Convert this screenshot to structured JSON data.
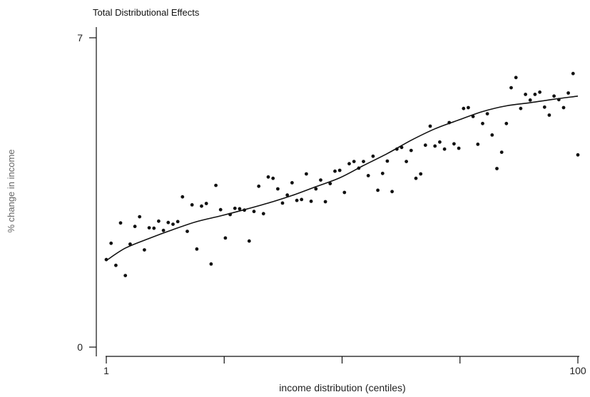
{
  "chart_data": {
    "type": "scatter",
    "title": "Total Distributional Effects",
    "xlabel": "income distribution (centiles)",
    "ylabel": "% change in income",
    "xlim": [
      1,
      100
    ],
    "ylim": [
      0,
      7
    ],
    "x_tick_labels": [
      {
        "value": 1,
        "label": "1"
      },
      {
        "value": 100,
        "label": "100"
      }
    ],
    "x_minor_ticks": [
      25.75,
      50.5,
      75.25
    ],
    "y_tick_labels": [
      {
        "value": 0,
        "label": "0"
      },
      {
        "value": 7,
        "label": "7"
      }
    ],
    "grid": false,
    "series": [
      {
        "kind": "points",
        "x": [
          1,
          2,
          3,
          4,
          5,
          6,
          7,
          8,
          9,
          10,
          11,
          12,
          13,
          14,
          15,
          16,
          17,
          18,
          19,
          20,
          21,
          22,
          23,
          24,
          25,
          26,
          27,
          28,
          29,
          30,
          31,
          32,
          33,
          34,
          35,
          36,
          37,
          38,
          39,
          40,
          41,
          42,
          43,
          44,
          45,
          46,
          47,
          48,
          49,
          50,
          51,
          52,
          53,
          54,
          55,
          56,
          57,
          58,
          59,
          60,
          61,
          62,
          63,
          64,
          65,
          66,
          67,
          68,
          69,
          70,
          71,
          72,
          73,
          74,
          75,
          76,
          77,
          78,
          79,
          80,
          81,
          82,
          83,
          84,
          85,
          86,
          87,
          88,
          89,
          90,
          91,
          92,
          93,
          94,
          95,
          96,
          97,
          98,
          99,
          100
        ],
        "y": [
          1.98,
          2.35,
          1.85,
          2.81,
          1.62,
          2.33,
          2.73,
          2.95,
          2.2,
          2.7,
          2.69,
          2.85,
          2.64,
          2.82,
          2.78,
          2.84,
          3.4,
          2.62,
          3.22,
          2.22,
          3.19,
          3.25,
          1.88,
          3.66,
          3.11,
          2.47,
          3.0,
          3.14,
          3.13,
          3.1,
          2.4,
          3.07,
          3.64,
          3.02,
          3.85,
          3.82,
          3.58,
          3.26,
          3.44,
          3.72,
          3.32,
          3.34,
          3.92,
          3.3,
          3.58,
          3.78,
          3.29,
          3.7,
          3.98,
          4.0,
          3.5,
          4.15,
          4.2,
          4.05,
          4.2,
          3.88,
          4.32,
          3.55,
          3.93,
          4.21,
          3.52,
          4.48,
          4.52,
          4.2,
          4.45,
          3.82,
          3.92,
          4.57,
          5.0,
          4.55,
          4.64,
          4.48,
          5.08,
          4.6,
          4.5,
          5.4,
          5.42,
          5.22,
          4.59,
          5.06,
          5.28,
          4.8,
          4.04,
          4.41,
          5.06,
          5.87,
          6.1,
          5.4,
          5.72,
          5.59,
          5.72,
          5.77,
          5.43,
          5.25,
          5.68,
          5.6,
          5.42,
          5.75,
          6.19,
          4.35
        ]
      },
      {
        "kind": "fitted-line",
        "x": [
          1,
          5,
          10,
          15,
          20,
          25,
          30,
          35,
          40,
          45,
          50,
          55,
          60,
          65,
          70,
          75,
          80,
          85,
          90,
          95,
          100
        ],
        "y": [
          1.96,
          2.24,
          2.46,
          2.66,
          2.84,
          2.97,
          3.11,
          3.26,
          3.43,
          3.63,
          3.83,
          4.11,
          4.38,
          4.68,
          4.94,
          5.14,
          5.33,
          5.46,
          5.53,
          5.61,
          5.68
        ]
      }
    ]
  }
}
